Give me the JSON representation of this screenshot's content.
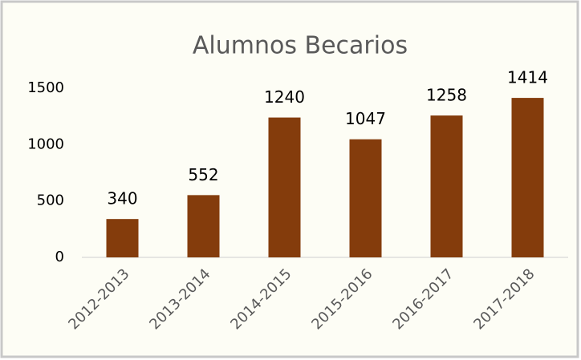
{
  "chart_data": {
    "type": "bar",
    "title": "Alumnos Becarios",
    "categories": [
      "2012-2013",
      "2013-2014",
      "2014-2015",
      "2015-2016",
      "2016-2017",
      "2017-2018"
    ],
    "values": [
      340,
      552,
      1240,
      1047,
      1258,
      1414
    ],
    "color": "#843c0c",
    "ylim": [
      0,
      1500
    ],
    "yticks": [
      0,
      500,
      1000,
      1500
    ],
    "grid": false
  }
}
